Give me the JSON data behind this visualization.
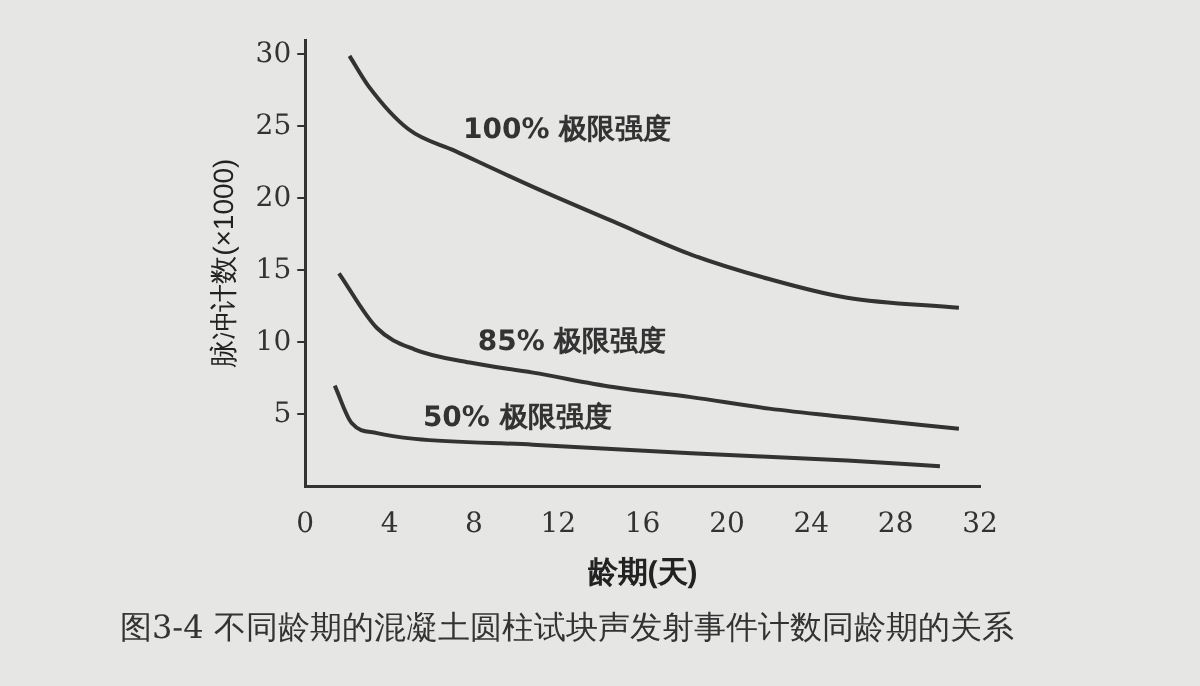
{
  "chart_data": {
    "type": "line",
    "xlabel": "龄期(天)",
    "ylabel": "脉冲计数(×1000)",
    "annotations": [
      "图3-4  不同龄期的混凝土圆柱试块声发射事件计数同龄期的关系"
    ],
    "xlim": [
      0,
      32
    ],
    "xticks": [
      0,
      4,
      8,
      12,
      16,
      20,
      24,
      28,
      32
    ],
    "ylim": [
      0,
      31
    ],
    "yticks": [
      5,
      10,
      15,
      20,
      25,
      30
    ],
    "grid": false,
    "legend": false,
    "series": [
      {
        "name": "100% 极限强度",
        "color": "#333333",
        "x": [
          2.1,
          3.0,
          4.9,
          7.1,
          10.8,
          14.6,
          18.3,
          22,
          25.7,
          31
        ],
        "values": [
          29.9,
          27.8,
          24.8,
          23.3,
          20.8,
          18.4,
          16.1,
          14.4,
          13.1,
          12.4
        ]
      },
      {
        "name": "85% 极限强度",
        "color": "#333333",
        "x": [
          1.6,
          3.4,
          5.2,
          7.8,
          10.8,
          14.6,
          18.3,
          22,
          25.7,
          31
        ],
        "values": [
          14.8,
          11,
          9.5,
          8.6,
          7.9,
          6.9,
          6.2,
          5.4,
          4.8,
          4
        ]
      },
      {
        "name": "50% 极限强度",
        "color": "#333333",
        "x": [
          1.4,
          2.2,
          3.4,
          5.2,
          10.8,
          18.3,
          25.7,
          30.1
        ],
        "values": [
          7,
          4.4,
          3.7,
          3.3,
          2.9,
          2.3,
          1.8,
          1.4
        ]
      }
    ]
  }
}
